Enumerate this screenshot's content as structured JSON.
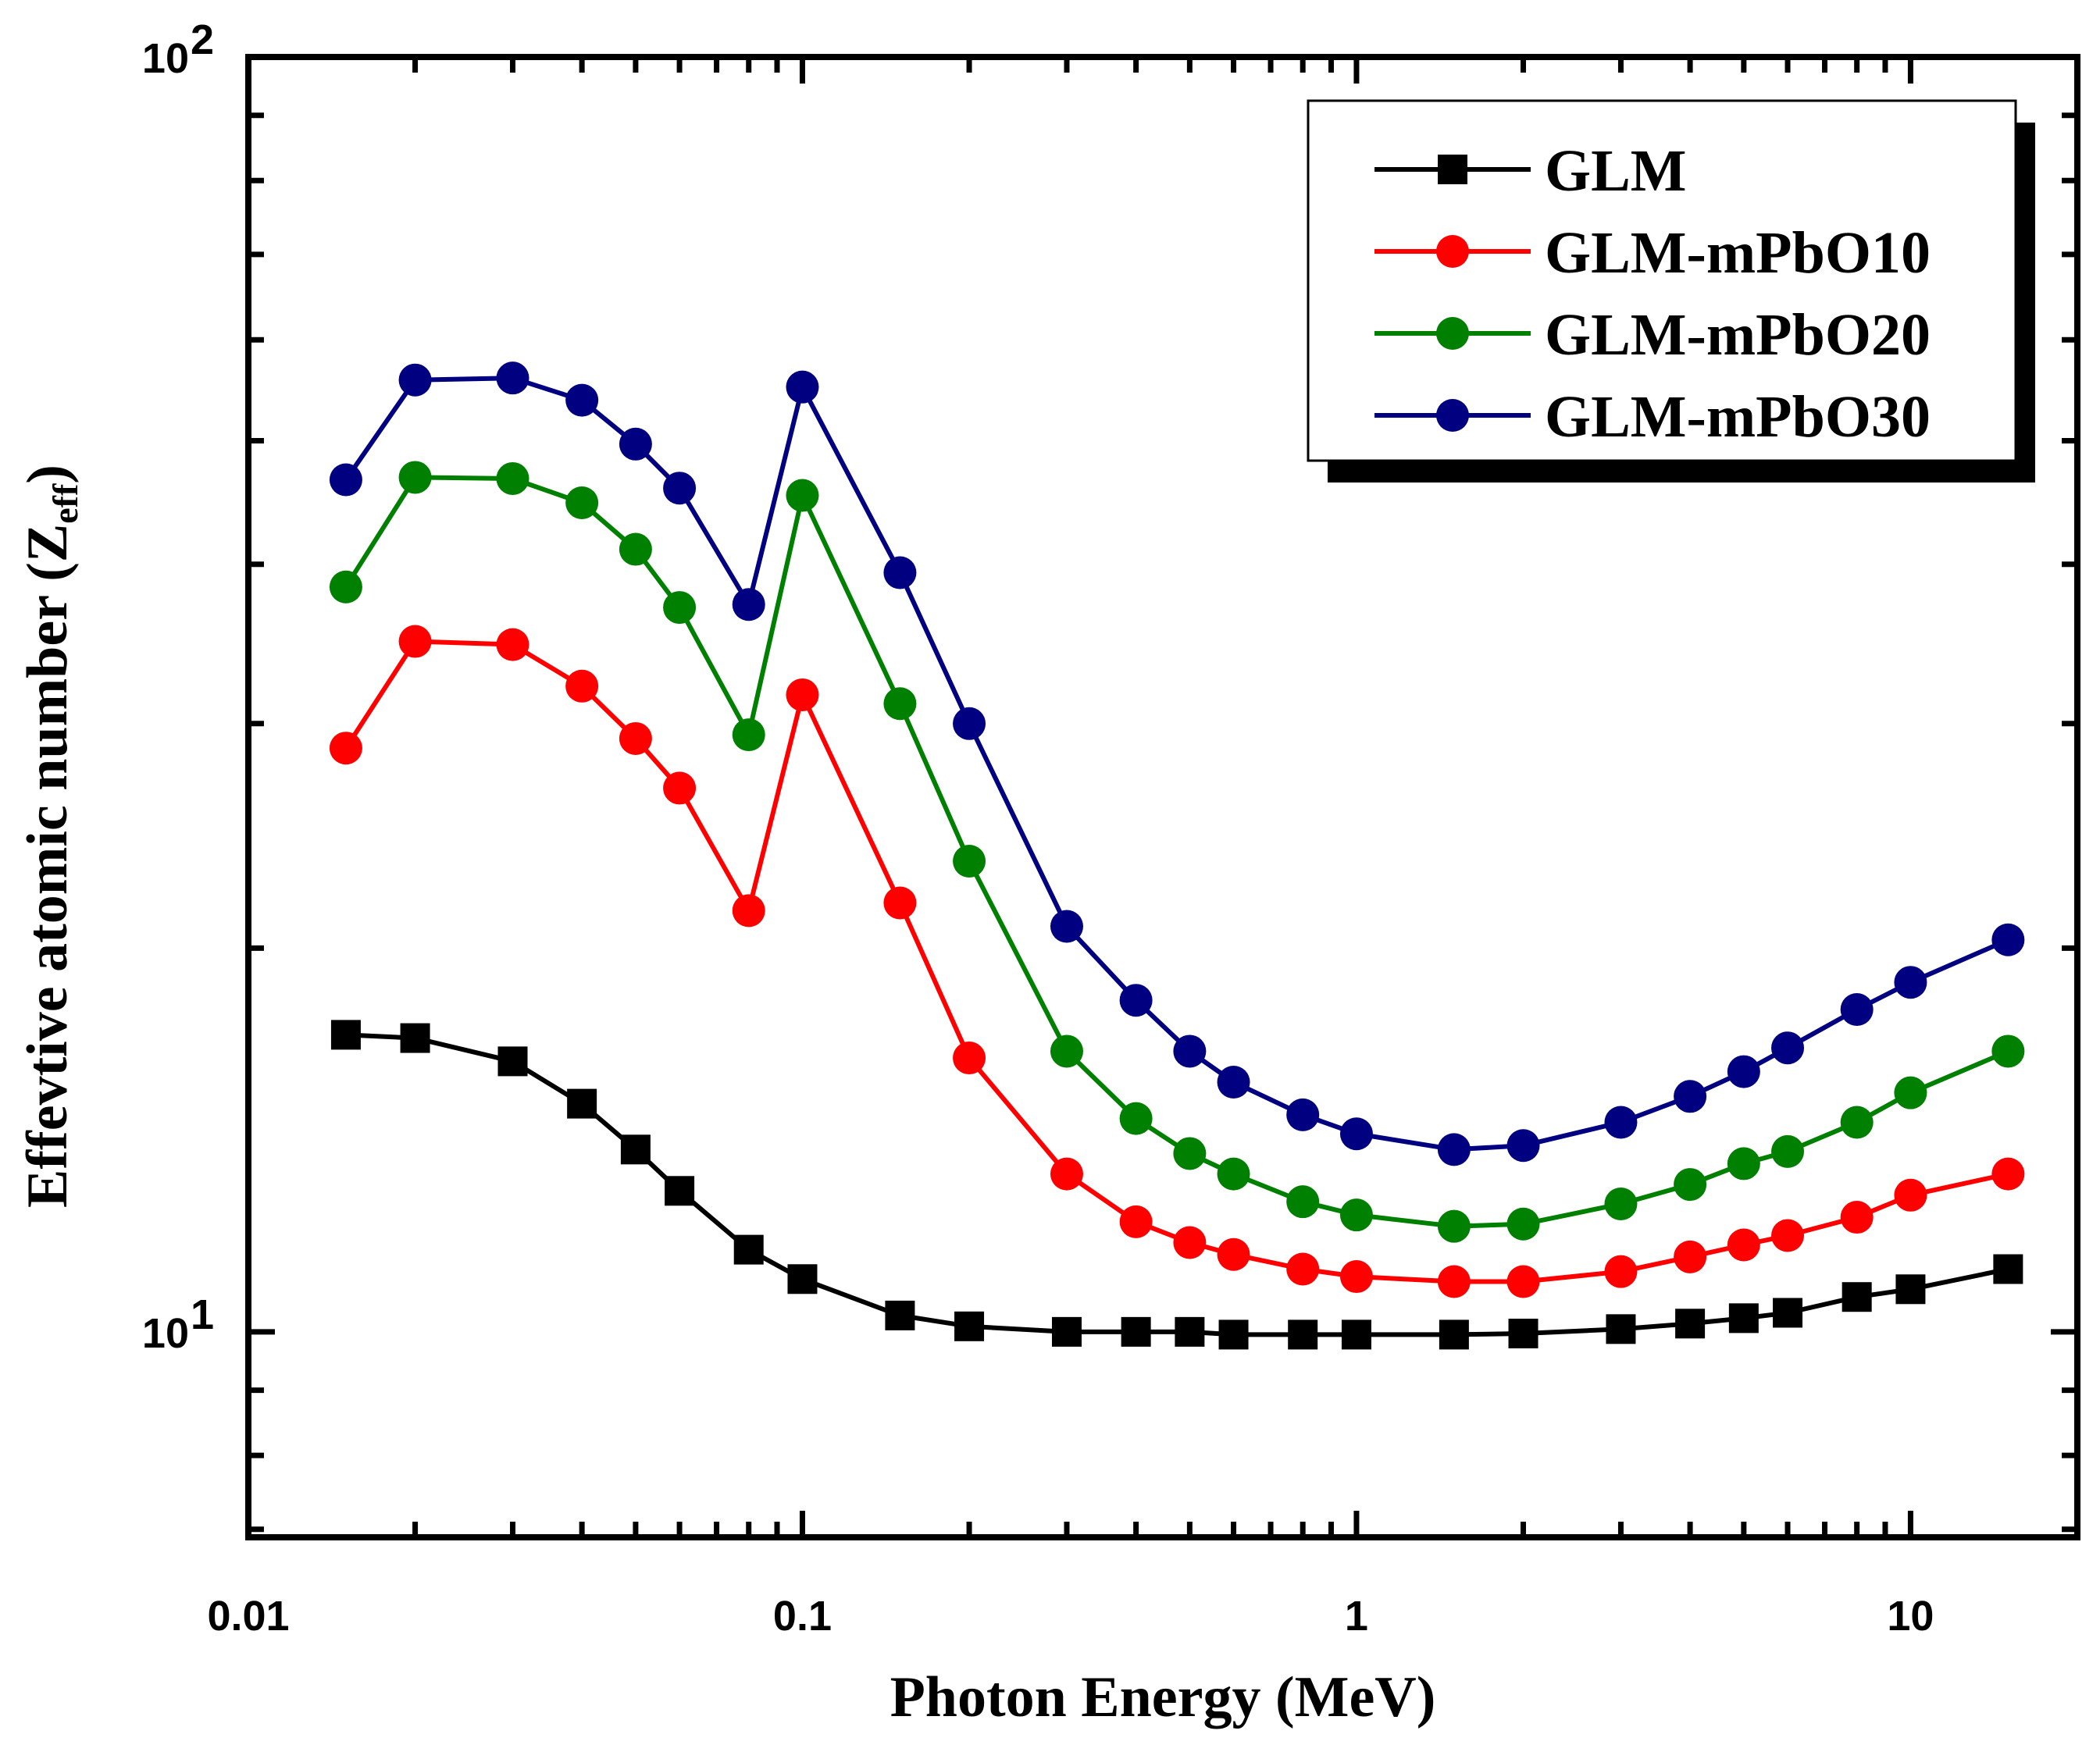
{
  "chart_data": {
    "type": "line",
    "title": "",
    "xlabel": "Photon Energy (MeV)",
    "ylabel_main": "Effevtive atomic number (Z",
    "ylabel_sub": "eff",
    "ylabel_close": ")",
    "xscale": "log",
    "yscale": "log",
    "xlim": [
      0.01,
      20
    ],
    "ylim": [
      6.9,
      100
    ],
    "x_ticks": [
      {
        "value": 0.01,
        "label": "0.01"
      },
      {
        "value": 0.1,
        "label": "0.1"
      },
      {
        "value": 1,
        "label": "1"
      },
      {
        "value": 10,
        "label": "10"
      }
    ],
    "y_ticks": [
      {
        "value": 10,
        "base": "10",
        "exp": "1"
      },
      {
        "value": 100,
        "base": "10",
        "exp": "2"
      }
    ],
    "legend_position": "top-right",
    "x": [
      0.015,
      0.02,
      0.03,
      0.04,
      0.05,
      0.06,
      0.08,
      0.1,
      0.15,
      0.2,
      0.3,
      0.4,
      0.5,
      0.6,
      0.8,
      1,
      1.5,
      2,
      3,
      4,
      5,
      6,
      8,
      10,
      15
    ],
    "series": [
      {
        "name": "GLM",
        "color": "#000000",
        "marker": "square",
        "values": [
          17.1,
          17.0,
          16.3,
          15.1,
          13.9,
          12.9,
          11.6,
          11.0,
          10.3,
          10.1,
          10.0,
          10.0,
          10.0,
          9.95,
          9.95,
          9.95,
          9.95,
          9.97,
          10.05,
          10.15,
          10.25,
          10.35,
          10.65,
          10.8,
          11.2
        ]
      },
      {
        "name": "GLM-mPbO10",
        "color": "#ff0000",
        "marker": "circle",
        "values": [
          28.7,
          34.8,
          34.6,
          32.1,
          29.2,
          26.7,
          21.4,
          31.6,
          21.7,
          16.4,
          13.3,
          12.2,
          11.75,
          11.5,
          11.2,
          11.05,
          10.95,
          10.95,
          11.15,
          11.45,
          11.7,
          11.9,
          12.3,
          12.8,
          13.3
        ]
      },
      {
        "name": "GLM-mPbO20",
        "color": "#008000",
        "marker": "circle",
        "values": [
          38.4,
          46.8,
          46.7,
          44.7,
          41.1,
          37.0,
          29.4,
          45.3,
          31.1,
          23.4,
          16.6,
          14.7,
          13.8,
          13.3,
          12.65,
          12.35,
          12.1,
          12.15,
          12.6,
          13.05,
          13.55,
          13.85,
          14.6,
          15.4,
          16.6
        ]
      },
      {
        "name": "GLM-mPbO30",
        "color": "#000080",
        "marker": "circle",
        "values": [
          46.6,
          55.8,
          56.0,
          53.8,
          49.7,
          45.9,
          37.2,
          55.1,
          39.4,
          30.0,
          20.8,
          18.2,
          16.6,
          15.7,
          14.8,
          14.3,
          13.9,
          14.0,
          14.6,
          15.3,
          16.0,
          16.7,
          17.9,
          18.8,
          20.3
        ]
      }
    ]
  }
}
